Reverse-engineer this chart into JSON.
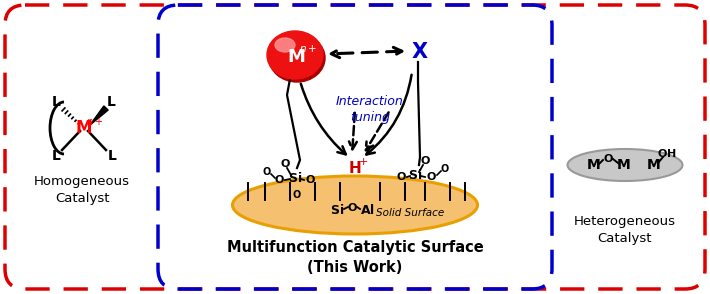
{
  "fig_width": 7.1,
  "fig_height": 2.94,
  "dpi": 100,
  "outer_box_color": "#dd0000",
  "inner_box_color": "#0000cc",
  "bg_color": "#ffffff",
  "title_center": "Multifunction Catalytic Surface\n(This Work)",
  "title_left": "Homogeneous\nCatalyst",
  "title_right": "Heterogeneous\nCatalyst",
  "interaction_label": "Interaction\ntuning",
  "solid_surface_label": "Solid Surface",
  "sphere_color": "#dd0000",
  "surface_fill": "#f5c070",
  "surface_edge": "#e8a000",
  "gray_fill": "#c8c8c8",
  "gray_edge": "#999999",
  "blue_color": "#0000cc",
  "red_color": "#cc0000"
}
